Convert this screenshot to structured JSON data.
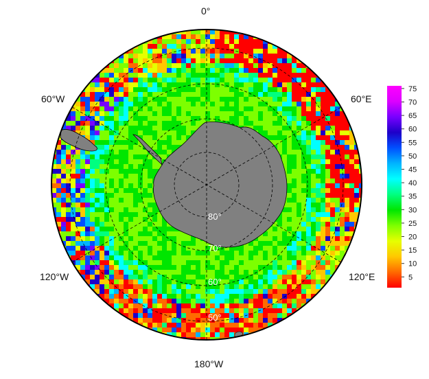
{
  "map": {
    "projection": "south-polar-stereographic",
    "longitude_labels": {
      "top": "0°",
      "left_upper": "60°W",
      "right_upper": "60°E",
      "left_lower": "120°W",
      "right_lower": "120°E",
      "bottom": "180°W"
    },
    "latitude_labels": [
      "80°",
      "70°",
      "60°",
      "50°"
    ],
    "land_color": "#808080",
    "coastline_color": "#000000"
  },
  "colorbar": {
    "ticks": [
      "75",
      "70",
      "65",
      "60",
      "55",
      "50",
      "45",
      "40",
      "35",
      "30",
      "25",
      "20",
      "15",
      "10",
      "5"
    ],
    "tick_values": [
      75,
      70,
      65,
      60,
      55,
      50,
      45,
      40,
      35,
      30,
      25,
      20,
      15,
      10,
      5
    ],
    "range": [
      1,
      76
    ],
    "colors": [
      "#ff0000",
      "#ff6a00",
      "#ffc800",
      "#e6ff00",
      "#7dff00",
      "#00e600",
      "#00ff80",
      "#00ffff",
      "#00b4ff",
      "#0050ff",
      "#1e00c8",
      "#7800ff",
      "#dc00ff",
      "#ff00ff"
    ]
  }
}
